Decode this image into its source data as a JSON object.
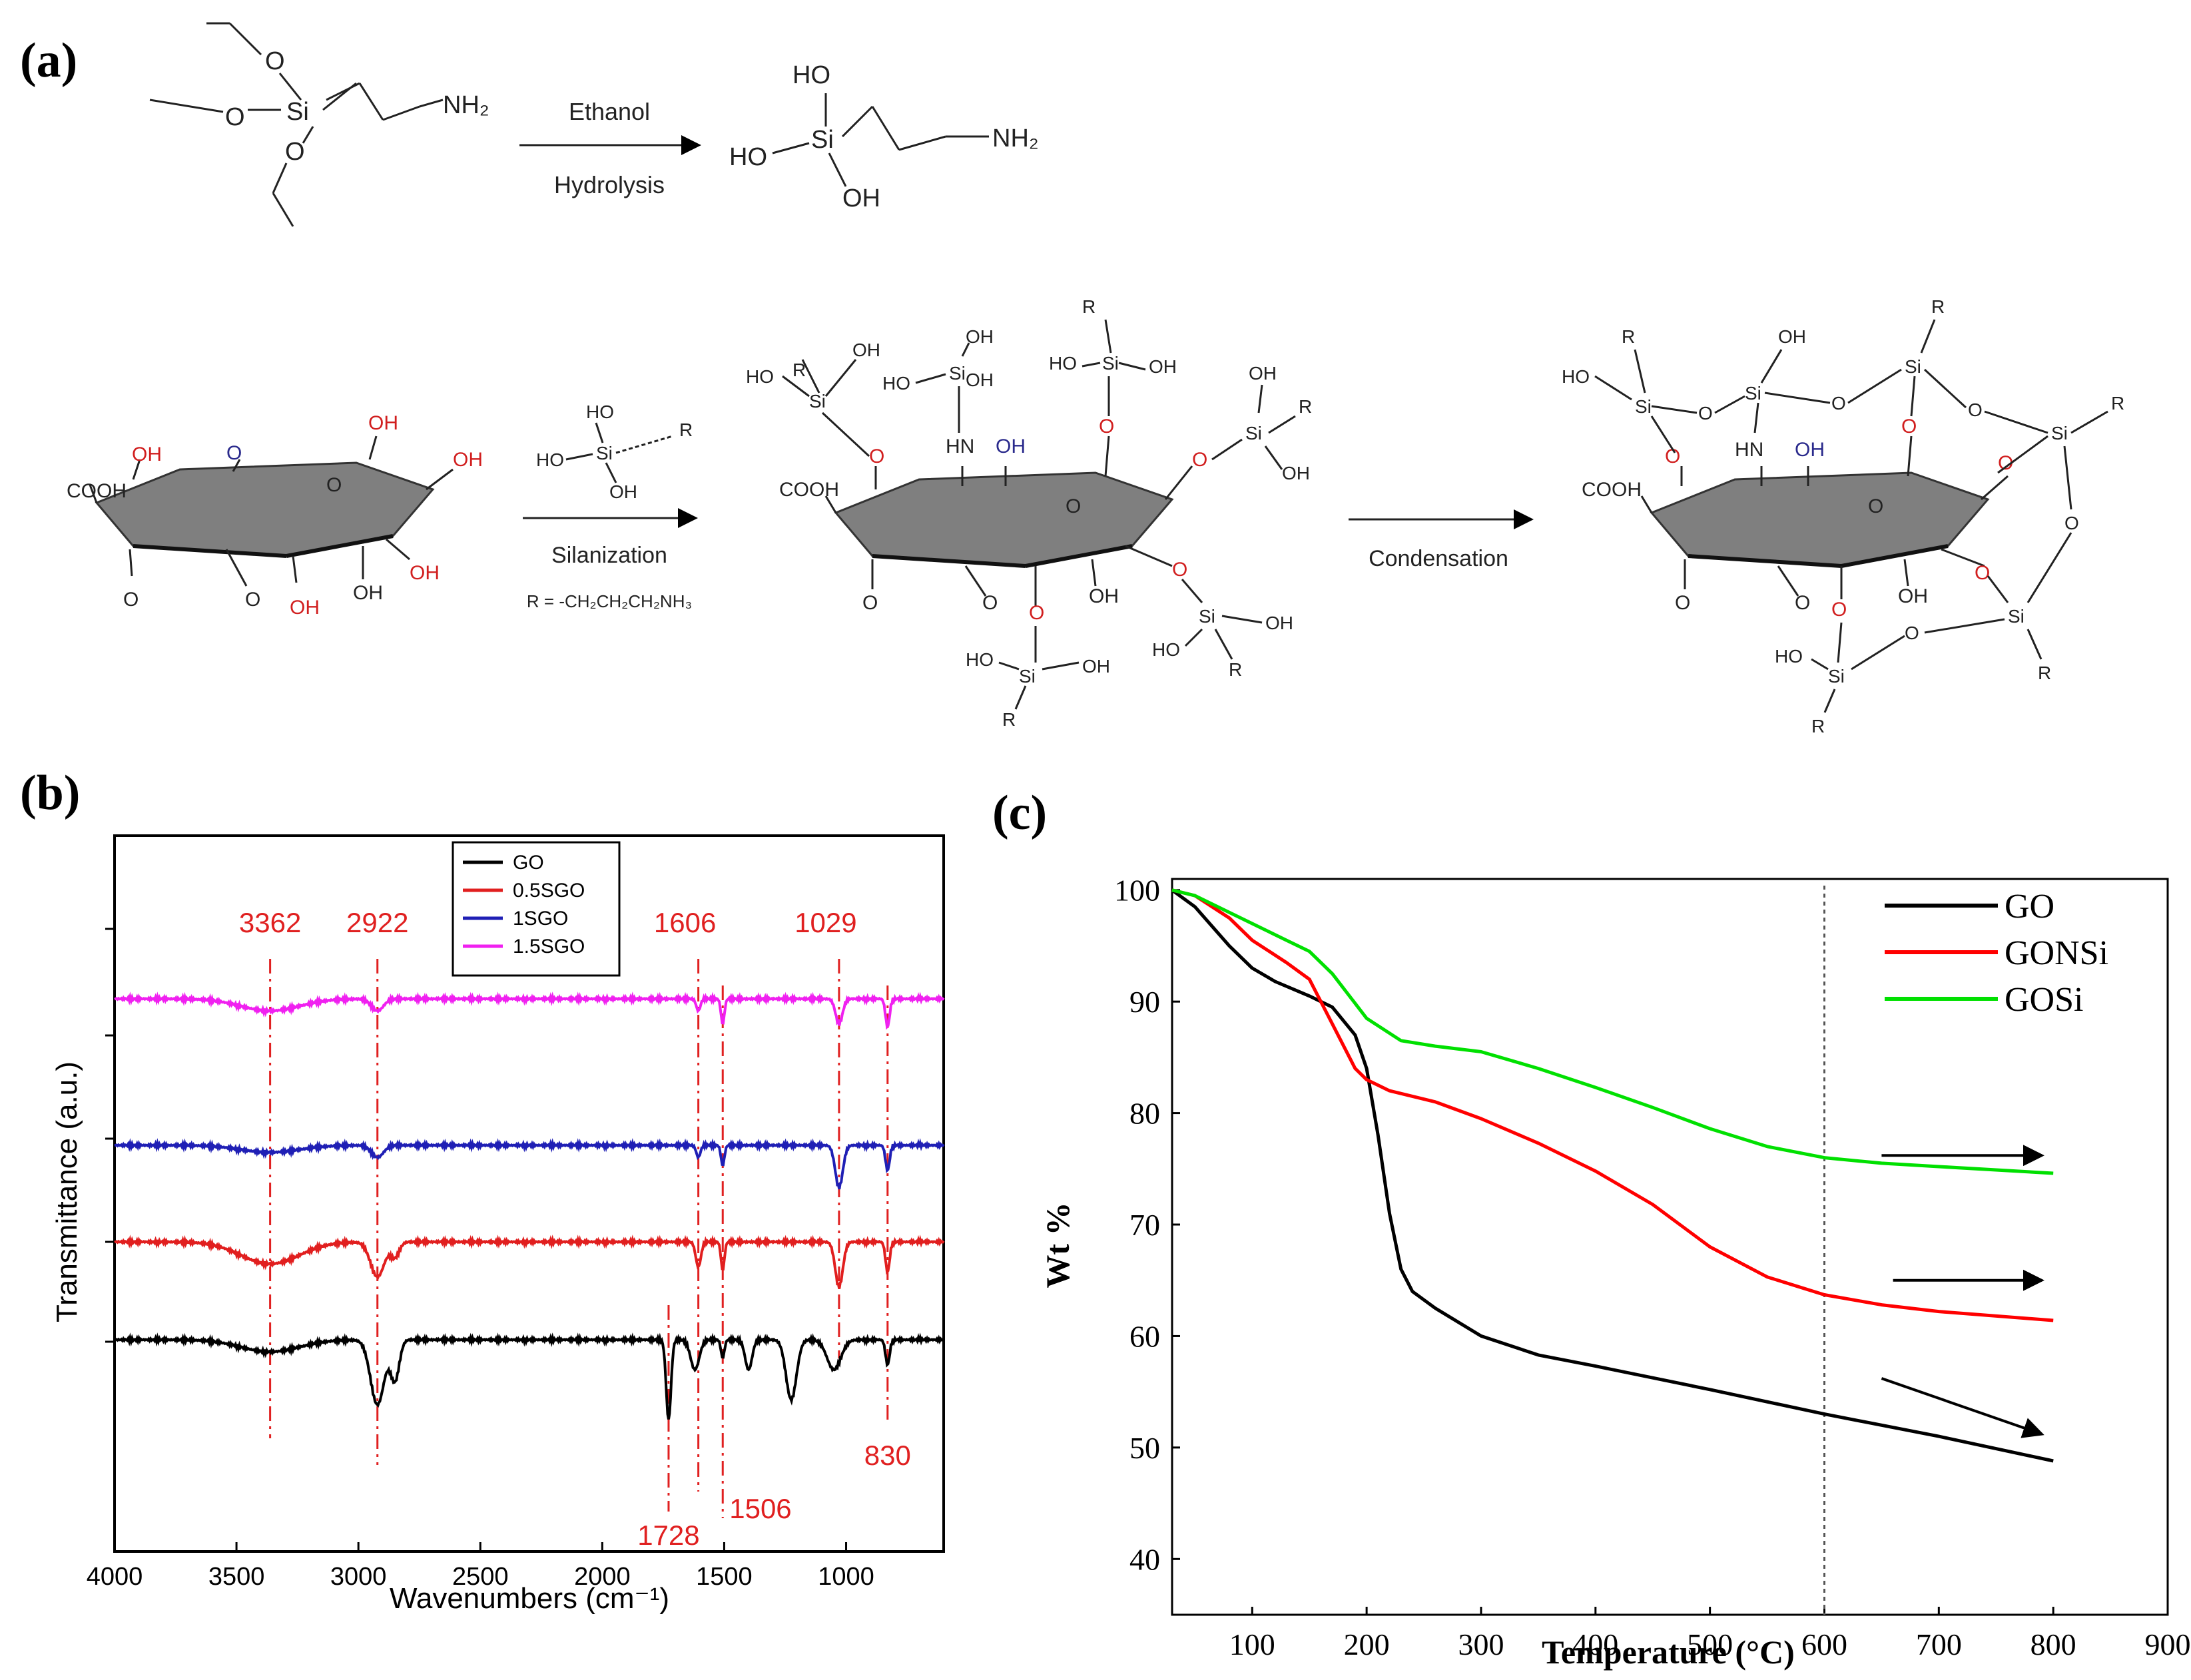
{
  "panels": {
    "a": "(a)",
    "b": "(b)",
    "c": "(c)"
  },
  "scheme": {
    "hydrolysis_top": "Ethanol",
    "hydrolysis_bottom": "Hydrolysis",
    "silanization": "Silanization",
    "r_definition": "R = -CH₂CH₂CH₂NH₃",
    "condensation": "Condensation",
    "labels": {
      "o": "O",
      "si": "Si",
      "nh2": "NH₂",
      "ho": "HO",
      "oh": "OH",
      "cooh": "COOH",
      "r": "R",
      "hn": "HN"
    }
  },
  "chart_data": [
    {
      "type": "line",
      "panel": "b",
      "title": "",
      "xlabel": "Wavenumbers (cm⁻¹)",
      "ylabel": "Transmittance (a.u.)",
      "xlim": [
        4000,
        600
      ],
      "x_ticks": [
        4000,
        3500,
        3000,
        2500,
        2000,
        1500,
        1000
      ],
      "legend": [
        "GO",
        "0.5SGO",
        "1SGO",
        "1.5SGO"
      ],
      "legend_position": "top-center",
      "colors": {
        "GO": "#000000",
        "0.5SGO": "#e11f1f",
        "1SGO": "#1f1fb5",
        "1.5SGO": "#f020f0"
      },
      "series": [
        {
          "name": "GO",
          "baseline": 0.0,
          "dips": [
            [
              3362,
              0.12,
              170
            ],
            [
              2922,
              0.65,
              40
            ],
            [
              2850,
              0.4,
              25
            ],
            [
              1728,
              0.8,
              14
            ],
            [
              1620,
              0.3,
              25
            ],
            [
              1506,
              0.18,
              10
            ],
            [
              1400,
              0.3,
              20
            ],
            [
              1225,
              0.6,
              30
            ],
            [
              1050,
              0.3,
              40
            ],
            [
              830,
              0.25,
              12
            ]
          ]
        },
        {
          "name": "0.5SGO",
          "baseline": 1.0,
          "dips": [
            [
              3362,
              0.22,
              170
            ],
            [
              2922,
              0.35,
              40
            ],
            [
              2850,
              0.15,
              25
            ],
            [
              1606,
              0.25,
              15
            ],
            [
              1506,
              0.28,
              10
            ],
            [
              1029,
              0.45,
              22
            ],
            [
              830,
              0.3,
              12
            ]
          ]
        },
        {
          "name": "1SGO",
          "baseline": 2.0,
          "dips": [
            [
              3362,
              0.07,
              170
            ],
            [
              2922,
              0.12,
              35
            ],
            [
              1606,
              0.12,
              12
            ],
            [
              1506,
              0.2,
              10
            ],
            [
              1029,
              0.42,
              22
            ],
            [
              830,
              0.25,
              12
            ]
          ]
        },
        {
          "name": "1.5SGO",
          "baseline": 3.0,
          "dips": [
            [
              3362,
              0.12,
              170
            ],
            [
              2922,
              0.12,
              35
            ],
            [
              1606,
              0.12,
              12
            ],
            [
              1506,
              0.25,
              10
            ],
            [
              1029,
              0.25,
              20
            ],
            [
              830,
              0.28,
              12
            ]
          ]
        }
      ],
      "annotations": [
        {
          "label": "3362",
          "x": 3362
        },
        {
          "label": "2922",
          "x": 2922
        },
        {
          "label": "1606",
          "x": 1606
        },
        {
          "label": "1029",
          "x": 1029
        },
        {
          "label": "1728",
          "x": 1728
        },
        {
          "label": "1506",
          "x": 1506
        },
        {
          "label": "830",
          "x": 830
        }
      ]
    },
    {
      "type": "line",
      "panel": "c",
      "title": "",
      "xlabel": "Temperature (°C)",
      "ylabel": "Wt %",
      "xlim": [
        30,
        900
      ],
      "ylim": [
        35,
        101
      ],
      "x_ticks": [
        100,
        200,
        300,
        400,
        500,
        600,
        700,
        800,
        900
      ],
      "y_ticks": [
        40,
        50,
        60,
        70,
        80,
        90,
        100
      ],
      "reference_line_x": 600,
      "legend": [
        "GO",
        "GONSi",
        "GOSi"
      ],
      "legend_position": "top-right",
      "colors": {
        "GO": "#000000",
        "GONSi": "#ff0000",
        "GOSi": "#00e000"
      },
      "series": [
        {
          "name": "GO",
          "x": [
            30,
            50,
            80,
            100,
            120,
            150,
            170,
            190,
            200,
            210,
            220,
            230,
            240,
            260,
            300,
            350,
            400,
            500,
            600,
            700,
            800
          ],
          "y": [
            100,
            98.5,
            95,
            93,
            91.8,
            90.5,
            89.5,
            87,
            84,
            78,
            71,
            66,
            64,
            62.5,
            60,
            58.3,
            57.3,
            55.2,
            53,
            51,
            48.8
          ]
        },
        {
          "name": "GONSi",
          "x": [
            30,
            50,
            80,
            100,
            130,
            150,
            170,
            190,
            200,
            220,
            260,
            300,
            350,
            400,
            450,
            500,
            550,
            600,
            650,
            700,
            800
          ],
          "y": [
            100,
            99.5,
            97.5,
            95.5,
            93.5,
            92,
            88,
            84,
            83,
            82,
            81,
            79.5,
            77.3,
            74.8,
            71.8,
            68,
            65.3,
            63.7,
            62.8,
            62.2,
            61.4
          ]
        },
        {
          "name": "GOSi",
          "x": [
            30,
            50,
            80,
            100,
            130,
            150,
            170,
            200,
            230,
            260,
            300,
            350,
            400,
            450,
            500,
            550,
            600,
            650,
            700,
            800
          ],
          "y": [
            100,
            99.5,
            98,
            97,
            95.5,
            94.5,
            92.5,
            88.5,
            86.5,
            86,
            85.5,
            84,
            82.3,
            80.5,
            78.6,
            77,
            76,
            75.5,
            75.2,
            74.6
          ]
        }
      ],
      "arrows": [
        {
          "series": "GOSi",
          "from": [
            650,
            76.2
          ],
          "to": [
            790,
            76.2
          ]
        },
        {
          "series": "GONSi",
          "from": [
            660,
            65
          ],
          "to": [
            790,
            65
          ]
        },
        {
          "series": "GO",
          "from": [
            650,
            56.2
          ],
          "to": [
            790,
            51.2
          ]
        }
      ]
    }
  ]
}
